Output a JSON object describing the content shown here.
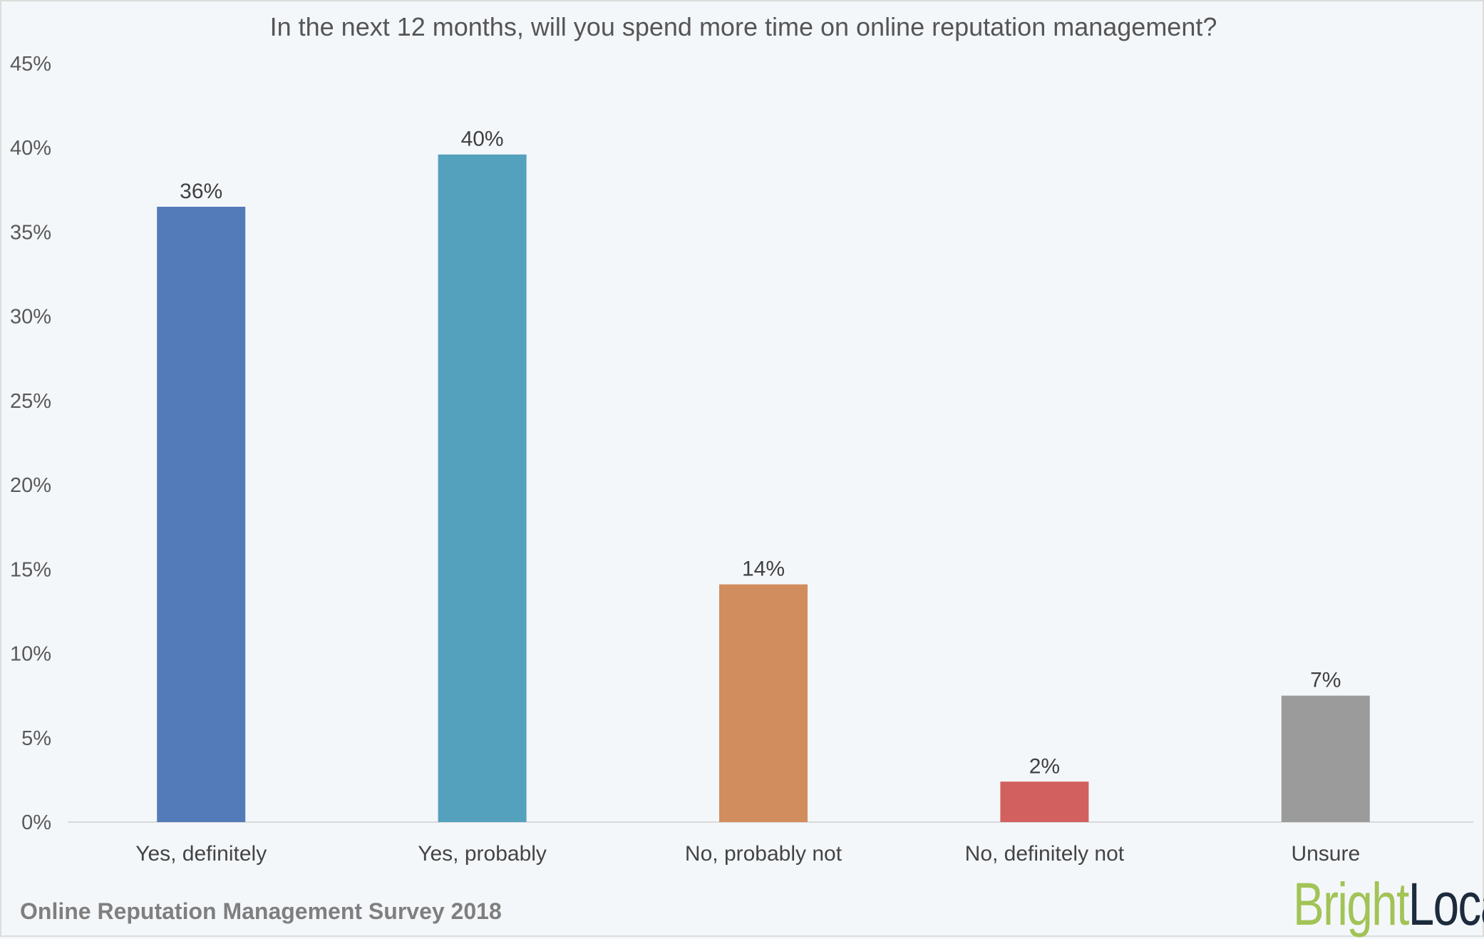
{
  "chart_data": {
    "type": "bar",
    "title": "In the next 12 months, will you spend more time on online reputation management?",
    "categories": [
      "Yes, definitely",
      "Yes, probably",
      "No, probably not",
      "No, definitely not",
      "Unsure"
    ],
    "values": [
      36.5,
      39.6,
      14.1,
      2.4,
      7.5
    ],
    "data_labels": [
      "36%",
      "40%",
      "14%",
      "2%",
      "7%"
    ],
    "colors": [
      "#537bb9",
      "#53a1bc",
      "#d18d5e",
      "#d1605e",
      "#9b9b9b"
    ],
    "xlabel": "",
    "ylabel": "",
    "ylim": [
      0,
      45
    ],
    "yticks": [
      0,
      5,
      10,
      15,
      20,
      25,
      30,
      35,
      40,
      45
    ],
    "ytick_labels": [
      "0%",
      "5%",
      "10%",
      "15%",
      "20%",
      "25%",
      "30%",
      "35%",
      "40%",
      "45%"
    ],
    "grid": false,
    "legend": "none"
  },
  "footer": "Online Reputation Management Survey 2018",
  "logo": {
    "part1": "Bright",
    "part2": "Local"
  }
}
